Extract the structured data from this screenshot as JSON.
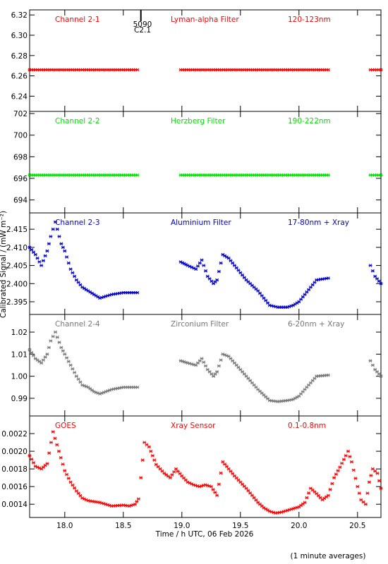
{
  "chart_data": {
    "type": "scatter",
    "xlabel": "Time / h UTC, 06 Feb 2026",
    "ylabel": "Calibrated Signal / (mW m⁻²)",
    "footnote": "(1 minute averages)",
    "xlim": [
      17.7,
      20.7
    ],
    "xticks": [
      "18.0",
      "18.5",
      "19.0",
      "19.5",
      "20.0",
      "20.5"
    ],
    "xtick_values": [
      18.0,
      18.5,
      19.0,
      19.5,
      20.0,
      20.5
    ],
    "event_marker": {
      "x": 18.65,
      "label1": "5090",
      "label2": "C2.1"
    },
    "panels": [
      {
        "channel": "Channel 2-1",
        "filter": "Lyman-alpha Filter",
        "band": "120-123nm",
        "color": "#ff0000",
        "ylim": [
          6.225,
          6.325
        ],
        "yticks": [
          "6.32",
          "6.30",
          "6.28",
          "6.26",
          "6.24"
        ],
        "ytick_values": [
          6.32,
          6.3,
          6.28,
          6.26,
          6.24
        ],
        "segments": [
          {
            "x0": 17.7,
            "x1": 18.62,
            "y": 6.266
          },
          {
            "x0": 18.99,
            "x1": 20.25,
            "y": 6.266
          },
          {
            "x0": 20.61,
            "x1": 20.7,
            "y": 6.266
          }
        ]
      },
      {
        "channel": "Channel 2-2",
        "filter": "Herzberg Filter",
        "band": "190-222nm",
        "color": "#00e000",
        "ylim": [
          692.8,
          702.2
        ],
        "yticks": [
          "702",
          "700",
          "698",
          "696",
          "694"
        ],
        "ytick_values": [
          702,
          700,
          698,
          696,
          694
        ],
        "segments": [
          {
            "x0": 17.7,
            "x1": 18.62,
            "y": 696.3
          },
          {
            "x0": 18.99,
            "x1": 20.25,
            "y": 696.3
          },
          {
            "x0": 20.61,
            "x1": 20.7,
            "y": 696.3
          }
        ]
      },
      {
        "channel": "Channel 2-3",
        "filter": "Aluminium Filter",
        "band": "17-80nm + Xray",
        "color": "#0000cc",
        "ylim": [
          2.3915,
          2.4195
        ],
        "yticks": [
          "2.415",
          "2.410",
          "2.405",
          "2.400",
          "2.395"
        ],
        "ytick_values": [
          2.415,
          2.41,
          2.405,
          2.4,
          2.395
        ],
        "segments": [
          {
            "points": [
              [
                17.7,
                2.41
              ],
              [
                17.75,
                2.408
              ],
              [
                17.8,
                2.405
              ],
              [
                17.85,
                2.409
              ],
              [
                17.88,
                2.413
              ],
              [
                17.92,
                2.417
              ],
              [
                17.97,
                2.411
              ],
              [
                18.0,
                2.409
              ],
              [
                18.05,
                2.404
              ],
              [
                18.1,
                2.401
              ],
              [
                18.15,
                2.399
              ],
              [
                18.2,
                2.398
              ],
              [
                18.25,
                2.397
              ],
              [
                18.3,
                2.396
              ],
              [
                18.35,
                2.3965
              ],
              [
                18.4,
                2.397
              ],
              [
                18.5,
                2.3975
              ],
              [
                18.62,
                2.3975
              ]
            ]
          },
          {
            "points": [
              [
                18.99,
                2.406
              ],
              [
                19.05,
                2.405
              ],
              [
                19.12,
                2.404
              ],
              [
                19.17,
                2.4065
              ],
              [
                19.22,
                2.402
              ],
              [
                19.27,
                2.4
              ],
              [
                19.3,
                2.401
              ],
              [
                19.35,
                2.408
              ],
              [
                19.4,
                2.407
              ],
              [
                19.45,
                2.405
              ],
              [
                19.55,
                2.401
              ],
              [
                19.65,
                2.398
              ],
              [
                19.75,
                2.394
              ],
              [
                19.82,
                2.3935
              ],
              [
                19.9,
                2.3935
              ],
              [
                19.95,
                2.394
              ],
              [
                20.0,
                2.395
              ],
              [
                20.05,
                2.397
              ],
              [
                20.1,
                2.399
              ],
              [
                20.15,
                2.401
              ],
              [
                20.25,
                2.4015
              ]
            ]
          },
          {
            "points": [
              [
                20.61,
                2.405
              ],
              [
                20.65,
                2.402
              ],
              [
                20.7,
                2.4
              ]
            ]
          }
        ]
      },
      {
        "channel": "Channel 2-4",
        "filter": "Zirconium Filter",
        "band": "6-20nm + Xray",
        "color": "#777777",
        "ylim": [
          0.982,
          1.028
        ],
        "yticks": [
          "1.02",
          "1.01",
          "1.00",
          "0.99"
        ],
        "ytick_values": [
          1.02,
          1.01,
          1.0,
          0.99
        ],
        "segments": [
          {
            "points": [
              [
                17.7,
                1.012
              ],
              [
                17.75,
                1.008
              ],
              [
                17.8,
                1.006
              ],
              [
                17.85,
                1.01
              ],
              [
                17.88,
                1.016
              ],
              [
                17.92,
                1.02
              ],
              [
                17.97,
                1.013
              ],
              [
                18.0,
                1.01
              ],
              [
                18.05,
                1.005
              ],
              [
                18.1,
                1.0
              ],
              [
                18.15,
                0.996
              ],
              [
                18.2,
                0.995
              ],
              [
                18.25,
                0.993
              ],
              [
                18.3,
                0.992
              ],
              [
                18.35,
                0.993
              ],
              [
                18.4,
                0.994
              ],
              [
                18.5,
                0.995
              ],
              [
                18.62,
                0.995
              ]
            ]
          },
          {
            "points": [
              [
                18.99,
                1.007
              ],
              [
                19.05,
                1.006
              ],
              [
                19.12,
                1.005
              ],
              [
                19.17,
                1.008
              ],
              [
                19.22,
                1.003
              ],
              [
                19.27,
                1.0
              ],
              [
                19.3,
                1.002
              ],
              [
                19.35,
                1.01
              ],
              [
                19.4,
                1.009
              ],
              [
                19.45,
                1.006
              ],
              [
                19.55,
                1.0
              ],
              [
                19.65,
                0.994
              ],
              [
                19.75,
                0.989
              ],
              [
                19.82,
                0.9885
              ],
              [
                19.9,
                0.989
              ],
              [
                19.95,
                0.9895
              ],
              [
                20.0,
                0.991
              ],
              [
                20.05,
                0.994
              ],
              [
                20.1,
                0.997
              ],
              [
                20.15,
                1.0
              ],
              [
                20.25,
                1.0005
              ]
            ]
          },
          {
            "points": [
              [
                20.61,
                1.007
              ],
              [
                20.65,
                1.003
              ],
              [
                20.7,
                1.0
              ]
            ]
          }
        ]
      },
      {
        "channel": "GOES",
        "filter": "Xray Sensor",
        "band": "0.1-0.8nm",
        "color": "#ff0000",
        "ylim": [
          0.00125,
          0.0024
        ],
        "yticks": [
          "0.0022",
          "0.0020",
          "0.0018",
          "0.0016",
          "0.0014"
        ],
        "ytick_values": [
          0.0022,
          0.002,
          0.0018,
          0.0016,
          0.0014
        ],
        "segments": [
          {
            "points": [
              [
                17.7,
                0.00195
              ],
              [
                17.75,
                0.00183
              ],
              [
                17.8,
                0.0018
              ],
              [
                17.85,
                0.00186
              ],
              [
                17.9,
                0.00222
              ],
              [
                17.95,
                0.002
              ],
              [
                18.0,
                0.00178
              ],
              [
                18.05,
                0.00165
              ],
              [
                18.1,
                0.00155
              ],
              [
                18.15,
                0.00147
              ],
              [
                18.2,
                0.00144
              ],
              [
                18.3,
                0.00142
              ],
              [
                18.4,
                0.00138
              ],
              [
                18.5,
                0.00139
              ],
              [
                18.55,
                0.00138
              ],
              [
                18.6,
                0.0014
              ],
              [
                18.63,
                0.00146
              ],
              [
                18.65,
                0.0017
              ],
              [
                18.68,
                0.0021
              ],
              [
                18.72,
                0.00205
              ],
              [
                18.78,
                0.00185
              ],
              [
                18.85,
                0.00175
              ],
              [
                18.9,
                0.0017
              ],
              [
                18.95,
                0.0018
              ],
              [
                19.0,
                0.00172
              ],
              [
                19.05,
                0.00165
              ],
              [
                19.1,
                0.00162
              ],
              [
                19.15,
                0.0016
              ],
              [
                19.2,
                0.00162
              ],
              [
                19.25,
                0.0016
              ],
              [
                19.3,
                0.0015
              ],
              [
                19.35,
                0.00188
              ],
              [
                19.4,
                0.0018
              ],
              [
                19.45,
                0.00172
              ],
              [
                19.5,
                0.00165
              ],
              [
                19.55,
                0.00158
              ],
              [
                19.6,
                0.0015
              ],
              [
                19.65,
                0.00142
              ],
              [
                19.7,
                0.00136
              ],
              [
                19.75,
                0.00132
              ],
              [
                19.8,
                0.0013
              ],
              [
                19.85,
                0.00131
              ],
              [
                19.9,
                0.00133
              ],
              [
                19.95,
                0.00135
              ],
              [
                20.0,
                0.00137
              ],
              [
                20.05,
                0.00142
              ],
              [
                20.1,
                0.00158
              ],
              [
                20.15,
                0.00152
              ],
              [
                20.2,
                0.00145
              ],
              [
                20.25,
                0.0015
              ],
              [
                20.3,
                0.0017
              ],
              [
                20.35,
                0.00182
              ],
              [
                20.4,
                0.00195
              ],
              [
                20.42,
                0.002
              ],
              [
                20.45,
                0.00188
              ],
              [
                20.5,
                0.0016
              ],
              [
                20.53,
                0.00145
              ],
              [
                20.57,
                0.0014
              ],
              [
                20.6,
                0.00165
              ],
              [
                20.63,
                0.0018
              ],
              [
                20.67,
                0.00175
              ],
              [
                20.7,
                0.00158
              ]
            ]
          }
        ]
      }
    ]
  }
}
